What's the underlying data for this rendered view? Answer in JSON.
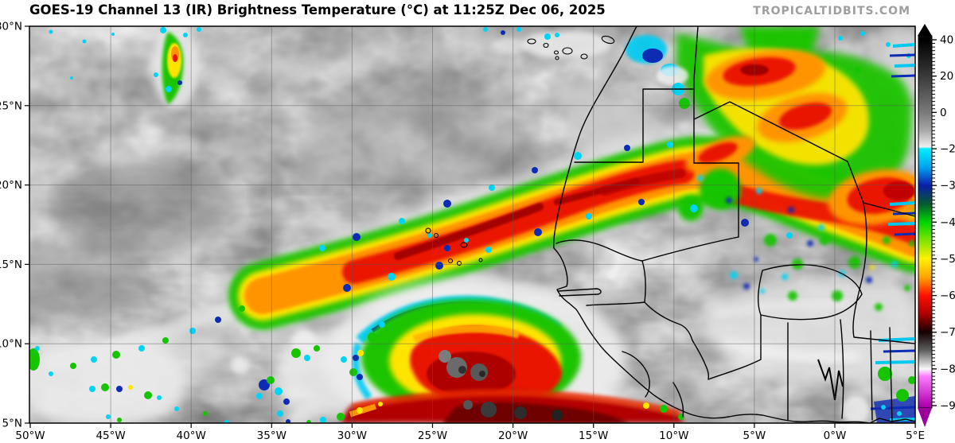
{
  "header": {
    "title": "GOES-19 Channel 13 (IR) Brightness Temperature (°C) at 11:25Z Dec 06, 2025",
    "watermark": "TROPICALTIDBITS.COM"
  },
  "map": {
    "extent": {
      "lon_min": "50°W",
      "lon_max": "5°E",
      "lat_min": "5°N",
      "lat_max": "30°N"
    },
    "x_axis": {
      "ticks": [
        "50°W",
        "45°W",
        "40°W",
        "35°W",
        "30°W",
        "25°W",
        "20°W",
        "15°W",
        "10°W",
        "5°W",
        "0°W",
        "5°E"
      ]
    },
    "y_axis": {
      "ticks": [
        "30°N",
        "25°N",
        "20°N",
        "15°N",
        "10°N",
        "5°N"
      ]
    }
  },
  "colorbar": {
    "unit": "°C",
    "tick_labels": [
      "40",
      "20",
      "0",
      "−20",
      "−30",
      "−40",
      "−50",
      "−60",
      "−70",
      "−80",
      "−90"
    ],
    "tick_values": [
      40,
      20,
      0,
      -20,
      -30,
      -40,
      -50,
      -60,
      -70,
      -80,
      -90
    ],
    "arrow_top_color": "#000000",
    "arrow_bottom_color": "#9c009c",
    "gradient": [
      {
        "value": 42,
        "color": "#0a0a0a"
      },
      {
        "value": 40,
        "color": "#000000"
      },
      {
        "value": 20,
        "color": "#3a3a3a"
      },
      {
        "value": 0,
        "color": "#7a7a7a"
      },
      {
        "value": -10,
        "color": "#a8a8a8"
      },
      {
        "value": -19,
        "color": "#f0f0f0"
      },
      {
        "value": -20,
        "color": "#00eeff"
      },
      {
        "value": -25,
        "color": "#00a4f0"
      },
      {
        "value": -30,
        "color": "#0a1eaa"
      },
      {
        "value": -35,
        "color": "#055a32"
      },
      {
        "value": -40,
        "color": "#00d400"
      },
      {
        "value": -45,
        "color": "#7fe400"
      },
      {
        "value": -50,
        "color": "#fff000"
      },
      {
        "value": -55,
        "color": "#ffa400"
      },
      {
        "value": -60,
        "color": "#ff1000"
      },
      {
        "value": -65,
        "color": "#ae0000"
      },
      {
        "value": -70,
        "color": "#140000"
      },
      {
        "value": -75,
        "color": "#606060"
      },
      {
        "value": -80,
        "color": "#f8f8f8"
      },
      {
        "value": -82,
        "color": "#ff7dff"
      },
      {
        "value": -90,
        "color": "#b000b0"
      },
      {
        "value": -91,
        "color": "#9c009c"
      }
    ]
  }
}
